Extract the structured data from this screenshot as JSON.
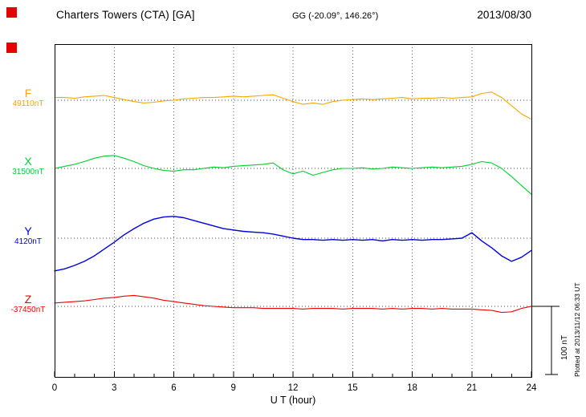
{
  "header": {
    "station": "Charters Towers (CTA)  [GA]",
    "coords": "GG (-20.09°, 146.26°)",
    "date": "2013/08/30"
  },
  "side_note": "Plotted at 2013/11/12 06:33 UT",
  "scale_bar": {
    "label": "100 nT",
    "span_nT": 100
  },
  "chart_data": {
    "type": "line",
    "title": "Charters Towers (CTA) [GA] magnetogram 2013/08/30",
    "xlabel": "U T (hour)",
    "ylabel": "",
    "units": "nT",
    "x_range": [
      0,
      24
    ],
    "x_ticks": [
      0,
      3,
      6,
      9,
      12,
      15,
      18,
      21,
      24
    ],
    "x_step_hours": 0.5,
    "grid": "dotted vertical lines every 3 h, dotted horizontal baseline per component",
    "series": [
      {
        "name": "F",
        "color": "#f5a800",
        "baseline_label": "49110nT",
        "baseline_nT": 49110,
        "offsets_nT": [
          4,
          4,
          3,
          5,
          6,
          7,
          4,
          1,
          -2,
          -4,
          -3,
          -1,
          0,
          2,
          3,
          4,
          4,
          5,
          6,
          5,
          6,
          7,
          8,
          3,
          -2,
          -6,
          -4,
          -6,
          -2,
          0,
          1,
          2,
          1,
          2,
          3,
          4,
          2,
          3,
          3,
          4,
          3,
          4,
          5,
          10,
          12,
          4,
          -8,
          -20,
          -28
        ]
      },
      {
        "name": "X",
        "color": "#00cc33",
        "baseline_label": "31500nT",
        "baseline_nT": 31500,
        "offsets_nT": [
          0,
          3,
          6,
          10,
          15,
          18,
          19,
          15,
          10,
          4,
          0,
          -3,
          -4,
          -2,
          -2,
          0,
          2,
          1,
          3,
          4,
          5,
          6,
          8,
          -2,
          -8,
          -4,
          -10,
          -6,
          -2,
          0,
          0,
          1,
          -1,
          0,
          2,
          1,
          0,
          1,
          2,
          1,
          2,
          3,
          6,
          10,
          8,
          0,
          -12,
          -25,
          -38
        ]
      },
      {
        "name": "Y",
        "color": "#0000dd",
        "baseline_label": "4120nT",
        "baseline_nT": 4120,
        "offsets_nT": [
          -48,
          -45,
          -40,
          -34,
          -26,
          -16,
          -6,
          5,
          14,
          22,
          28,
          31,
          32,
          30,
          26,
          22,
          18,
          14,
          12,
          10,
          9,
          8,
          6,
          3,
          0,
          -2,
          -2,
          -3,
          -2,
          -3,
          -2,
          -3,
          -2,
          -4,
          -2,
          -3,
          -2,
          -3,
          -2,
          -2,
          -1,
          0,
          8,
          -4,
          -14,
          -26,
          -34,
          -28,
          -18
        ]
      },
      {
        "name": "Z",
        "color": "#ee0000",
        "baseline_label": "-37450nT",
        "baseline_nT": -37450,
        "offsets_nT": [
          5,
          6,
          7,
          8,
          10,
          12,
          13,
          15,
          16,
          14,
          12,
          9,
          7,
          5,
          3,
          1,
          0,
          -1,
          -2,
          -2,
          -2,
          -3,
          -3,
          -3,
          -3,
          -4,
          -3,
          -3,
          -3,
          -4,
          -3,
          -3,
          -3,
          -4,
          -3,
          -4,
          -3,
          -3,
          -4,
          -3,
          -4,
          -4,
          -4,
          -5,
          -6,
          -9,
          -8,
          -3,
          0
        ]
      }
    ]
  }
}
